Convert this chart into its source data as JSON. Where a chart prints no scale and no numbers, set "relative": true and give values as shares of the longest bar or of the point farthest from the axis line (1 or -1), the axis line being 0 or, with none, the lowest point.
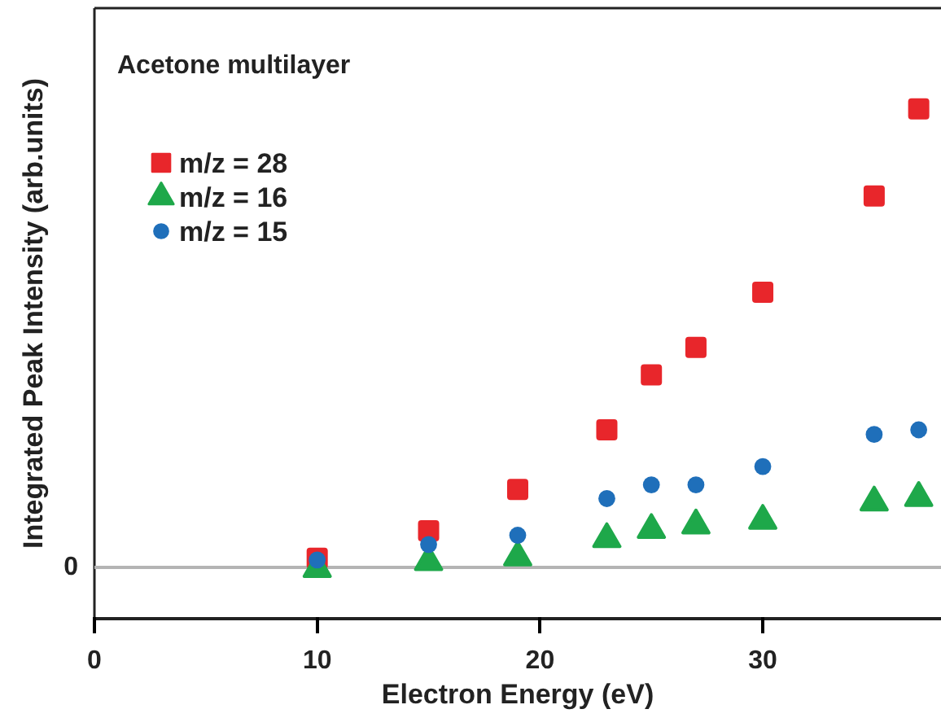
{
  "chart_data": {
    "type": "scatter",
    "xlabel": "Electron Energy (eV)",
    "ylabel": "Integrated Peak Intensity (arb.units)",
    "annotations": [
      "Acetone multilayer"
    ],
    "relative": true,
    "legend": "top left",
    "xlim": [
      0,
      38
    ],
    "xticks": [
      0,
      10,
      20,
      30
    ],
    "x": [
      10,
      15,
      19,
      23,
      25,
      27,
      30,
      35,
      37
    ],
    "ref_lines": [
      {
        "axis": "y",
        "value": 0,
        "label": "0",
        "color": "#b4b4b4"
      }
    ],
    "series": [
      {
        "name": "m/z = 28",
        "color": "#e8262b",
        "marker": "square",
        "values": [
          0.02,
          0.08,
          0.17,
          0.3,
          0.42,
          0.48,
          0.6,
          0.81,
          1
        ]
      },
      {
        "name": "m/z = 16",
        "color": "#1ea84a",
        "marker": "triangle",
        "values": [
          0.005,
          0.02,
          0.03,
          0.07,
          0.09,
          0.1,
          0.11,
          0.15,
          0.16
        ]
      },
      {
        "name": "m/z = 15",
        "color": "#1f6fba",
        "marker": "circle",
        "values": [
          0.016,
          0.05,
          0.07,
          0.15,
          0.18,
          0.18,
          0.22,
          0.29,
          0.3
        ]
      }
    ]
  }
}
